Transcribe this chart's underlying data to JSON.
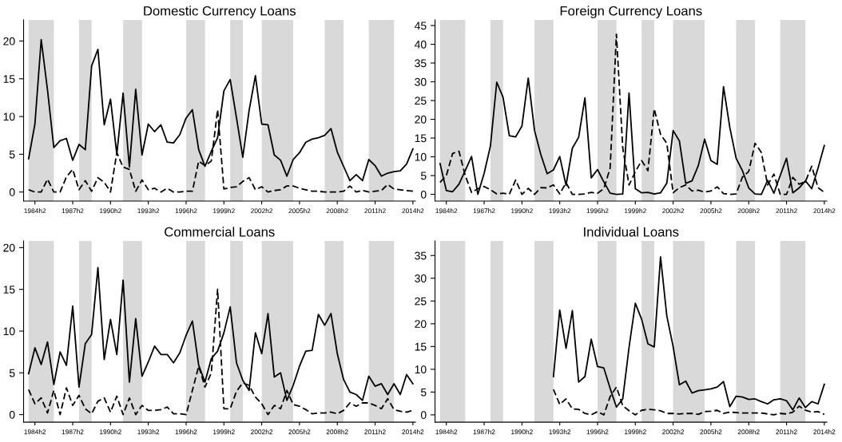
{
  "chart_data": [
    {
      "type": "line",
      "title": "Domestic Currency Loans",
      "categories": [
        null,
        "1984h2",
        null,
        null,
        null,
        null,
        null,
        "1987h2",
        null,
        null,
        null,
        null,
        null,
        "1990h2",
        null,
        null,
        null,
        null,
        null,
        "1993h2",
        null,
        null,
        null,
        null,
        null,
        "1996h2",
        null,
        null,
        null,
        null,
        null,
        "1999h2",
        null,
        null,
        null,
        null,
        null,
        "2002h2",
        null,
        null,
        null,
        null,
        null,
        "2005h2",
        null,
        null,
        null,
        null,
        null,
        "2008h2",
        null,
        null,
        null,
        null,
        null,
        "2011h2",
        null,
        null,
        null,
        null,
        null,
        "2014h2"
      ],
      "series": [
        {
          "color": "#000000",
          "line_style": "solid",
          "values": [
            4.4,
            9.0,
            20.2,
            13.5,
            5.9,
            6.8,
            7.1,
            4.2,
            6.3,
            5.6,
            16.7,
            18.9,
            8.9,
            12.3,
            5.0,
            13.1,
            3.3,
            13.6,
            4.9,
            9.0,
            8.0,
            8.9,
            6.6,
            6.5,
            7.6,
            9.8,
            10.9,
            5.6,
            3.4,
            5.4,
            7.2,
            13.4,
            14.9,
            9.8,
            4.6,
            10.8,
            15.4,
            9.0,
            8.9,
            4.9,
            4.2,
            2.1,
            4.3,
            5.2,
            6.6,
            7.0,
            7.2,
            7.5,
            8.4,
            5.3,
            3.4,
            1.5,
            2.3,
            1.5,
            4.3,
            3.5,
            2.1,
            2.5,
            2.7,
            2.8,
            3.7,
            5.7
          ]
        },
        {
          "color": "#000000",
          "line_style": "dashed",
          "values": [
            0.3,
            0.0,
            0.0,
            1.7,
            0.0,
            0.0,
            2.0,
            3.0,
            0.3,
            1.5,
            0.1,
            1.9,
            1.3,
            0.0,
            5.2,
            3.3,
            3.0,
            0.1,
            1.6,
            0.3,
            0.5,
            0.0,
            0.5,
            0.0,
            0.0,
            0.1,
            0.1,
            4.1,
            3.5,
            4.1,
            10.9,
            0.4,
            0.6,
            0.7,
            1.4,
            1.9,
            0.3,
            0.7,
            0.0,
            0.2,
            0.3,
            0.8,
            0.8,
            0.5,
            0.3,
            0.1,
            0.1,
            0.0,
            0.0,
            0.0,
            0.1,
            0.8,
            0.0,
            0.2,
            0.0,
            0.1,
            0.2,
            1.0,
            0.4,
            0.3,
            0.2,
            0.1
          ]
        }
      ],
      "ylim": [
        -1.2,
        22.8
      ],
      "yticks": [
        0,
        5,
        10,
        15,
        20
      ],
      "grid": false,
      "legend": false
    },
    {
      "type": "line",
      "title": "Foreign Currency Loans",
      "categories": [
        null,
        "1984h2",
        null,
        null,
        null,
        null,
        null,
        "1987h2",
        null,
        null,
        null,
        null,
        null,
        "1990h2",
        null,
        null,
        null,
        null,
        null,
        "1993h2",
        null,
        null,
        null,
        null,
        null,
        "1996h2",
        null,
        null,
        null,
        null,
        null,
        "1999h2",
        null,
        null,
        null,
        null,
        null,
        "2002h2",
        null,
        null,
        null,
        null,
        null,
        "2005h2",
        null,
        null,
        null,
        null,
        null,
        "2008h2",
        null,
        null,
        null,
        null,
        null,
        "2011h2",
        null,
        null,
        null,
        null,
        null,
        "2014h2"
      ],
      "series": [
        {
          "color": "#000000",
          "line_style": "solid",
          "values": [
            8.2,
            1.0,
            0.7,
            2.7,
            6.3,
            10.1,
            0.0,
            5.6,
            12.9,
            29.9,
            25.9,
            15.6,
            15.3,
            18.2,
            31.0,
            17.0,
            10.6,
            5.5,
            6.5,
            10.1,
            2.4,
            12.3,
            15.2,
            25.7,
            4.4,
            6.6,
            3.3,
            0.3,
            0.0,
            0.1,
            27.0,
            1.5,
            0.4,
            0.5,
            0.1,
            0.4,
            3.0,
            17.0,
            14.2,
            2.9,
            3.6,
            7.7,
            14.7,
            9.0,
            8.0,
            28.7,
            17.8,
            9.6,
            6.3,
            1.7,
            0.1,
            0.0,
            3.7,
            0.3,
            5.0,
            9.6,
            0.4,
            1.7,
            3.6,
            1.5,
            7.0,
            13.0
          ]
        },
        {
          "color": "#000000",
          "line_style": "dashed",
          "values": [
            3.2,
            5.0,
            10.9,
            11.5,
            5.0,
            0.5,
            1.5,
            2.1,
            1.2,
            0.1,
            0.3,
            0.0,
            3.8,
            0.0,
            1.6,
            0.0,
            1.8,
            1.7,
            2.5,
            0.1,
            3.1,
            0.0,
            0.0,
            0.1,
            0.5,
            0.3,
            1.5,
            7.0,
            42.7,
            12.4,
            2.5,
            6.0,
            9.0,
            6.3,
            22.8,
            16.0,
            13.6,
            0.4,
            1.8,
            2.5,
            0.9,
            1.1,
            0.6,
            0.9,
            2.0,
            0.2,
            0.0,
            0.1,
            4.6,
            6.1,
            13.6,
            11.2,
            2.5,
            5.4,
            0.0,
            0.0,
            4.5,
            2.7,
            3.4,
            7.5,
            1.8,
            0.5
          ]
        }
      ],
      "ylim": [
        -1.8,
        46.5
      ],
      "yticks": [
        0,
        5,
        10,
        15,
        20,
        25,
        30,
        35,
        40,
        45
      ],
      "grid": false,
      "legend": false
    },
    {
      "type": "line",
      "title": "Commercial Loans",
      "categories": [
        null,
        "1984h2",
        null,
        null,
        null,
        null,
        null,
        "1987h2",
        null,
        null,
        null,
        null,
        null,
        "1990h2",
        null,
        null,
        null,
        null,
        null,
        "1993h2",
        null,
        null,
        null,
        null,
        null,
        "1996h2",
        null,
        null,
        null,
        null,
        null,
        "1999h2",
        null,
        null,
        null,
        null,
        null,
        "2002h2",
        null,
        null,
        null,
        null,
        null,
        "2005h2",
        null,
        null,
        null,
        null,
        null,
        "2008h2",
        null,
        null,
        null,
        null,
        null,
        "2011h2",
        null,
        null,
        null,
        null,
        null,
        "2014h2"
      ],
      "series": [
        {
          "color": "#000000",
          "line_style": "solid",
          "values": [
            4.9,
            8.0,
            6.0,
            8.7,
            3.6,
            7.5,
            5.9,
            13.0,
            3.3,
            8.5,
            9.6,
            17.6,
            6.6,
            11.4,
            7.2,
            16.1,
            3.9,
            11.5,
            4.6,
            6.3,
            8.2,
            7.2,
            7.2,
            6.2,
            7.4,
            9.5,
            11.2,
            5.9,
            3.9,
            6.7,
            7.6,
            9.8,
            12.9,
            6.2,
            4.1,
            2.9,
            9.8,
            7.3,
            12.1,
            4.5,
            5.0,
            1.7,
            3.5,
            5.8,
            7.6,
            7.7,
            12.0,
            10.7,
            12.1,
            7.3,
            4.2,
            2.7,
            2.4,
            1.7,
            4.6,
            3.4,
            3.7,
            2.4,
            3.7,
            2.4,
            4.8,
            3.7
          ]
        },
        {
          "color": "#000000",
          "line_style": "dashed",
          "values": [
            3.0,
            1.3,
            2.0,
            0.2,
            2.9,
            0.0,
            3.2,
            1.1,
            2.3,
            0.7,
            0.1,
            1.6,
            2.0,
            0.3,
            2.2,
            0.0,
            2.0,
            0.0,
            1.1,
            0.5,
            0.5,
            0.6,
            0.9,
            0.1,
            0.1,
            0.0,
            2.9,
            5.8,
            3.3,
            5.0,
            15.0,
            0.7,
            0.7,
            2.8,
            3.8,
            3.5,
            2.1,
            1.3,
            0.0,
            1.1,
            0.7,
            2.9,
            1.2,
            1.0,
            0.6,
            0.1,
            0.2,
            0.2,
            0.3,
            0.1,
            0.5,
            1.4,
            1.0,
            1.4,
            1.4,
            1.1,
            0.7,
            1.9,
            0.6,
            0.4,
            0.3,
            0.5
          ]
        }
      ],
      "ylim": [
        -0.9,
        20.8
      ],
      "yticks": [
        0,
        5,
        10,
        15,
        20
      ],
      "grid": false,
      "legend": false
    },
    {
      "type": "line",
      "title": "Individual Loans",
      "categories": [
        null,
        "1984h2",
        null,
        null,
        null,
        null,
        null,
        "1987h2",
        null,
        null,
        null,
        null,
        null,
        "1990h2",
        null,
        null,
        null,
        null,
        null,
        "1993h2",
        null,
        null,
        null,
        null,
        null,
        "1996h2",
        null,
        null,
        null,
        null,
        null,
        "1999h2",
        null,
        null,
        null,
        null,
        null,
        "2002h2",
        null,
        null,
        null,
        null,
        null,
        "2005h2",
        null,
        null,
        null,
        null,
        null,
        "2008h2",
        null,
        null,
        null,
        null,
        null,
        "2011h2",
        null,
        null,
        null,
        null,
        null,
        "2014h2"
      ],
      "series": [
        {
          "color": "#000000",
          "line_style": "solid",
          "values": [
            null,
            null,
            null,
            null,
            null,
            null,
            null,
            null,
            null,
            null,
            null,
            null,
            null,
            null,
            null,
            null,
            null,
            null,
            8.4,
            23.0,
            14.6,
            22.9,
            7.2,
            8.4,
            16.6,
            10.6,
            10.3,
            5.8,
            1.7,
            3.5,
            14.8,
            24.5,
            21.0,
            15.6,
            14.9,
            34.7,
            21.7,
            15.0,
            6.6,
            7.4,
            4.8,
            5.3,
            5.5,
            5.7,
            6.1,
            7.3,
            1.8,
            4.1,
            3.9,
            3.4,
            3.5,
            2.9,
            2.4,
            3.3,
            3.5,
            3.1,
            1.1,
            3.7,
            1.6,
            2.9,
            2.4,
            6.7
          ]
        },
        {
          "color": "#000000",
          "line_style": "dashed",
          "values": [
            null,
            null,
            null,
            null,
            null,
            null,
            null,
            null,
            null,
            null,
            null,
            null,
            null,
            null,
            null,
            null,
            null,
            null,
            5.6,
            2.3,
            3.5,
            1.3,
            1.2,
            0.3,
            0.0,
            0.7,
            0.0,
            4.0,
            6.1,
            2.0,
            0.9,
            0.0,
            1.0,
            1.2,
            1.1,
            0.9,
            0.3,
            0.3,
            0.2,
            0.3,
            0.3,
            0.1,
            0.7,
            0.8,
            1.0,
            0.3,
            0.6,
            0.5,
            0.4,
            0.4,
            0.4,
            0.4,
            0.2,
            0.0,
            0.3,
            0.2,
            0.6,
            1.9,
            1.0,
            0.6,
            0.7,
            0.1
          ]
        }
      ],
      "ylim": [
        -1.6,
        38.2
      ],
      "yticks": [
        0,
        5,
        10,
        15,
        20,
        25,
        30,
        35
      ],
      "grid": false,
      "legend": false
    }
  ]
}
